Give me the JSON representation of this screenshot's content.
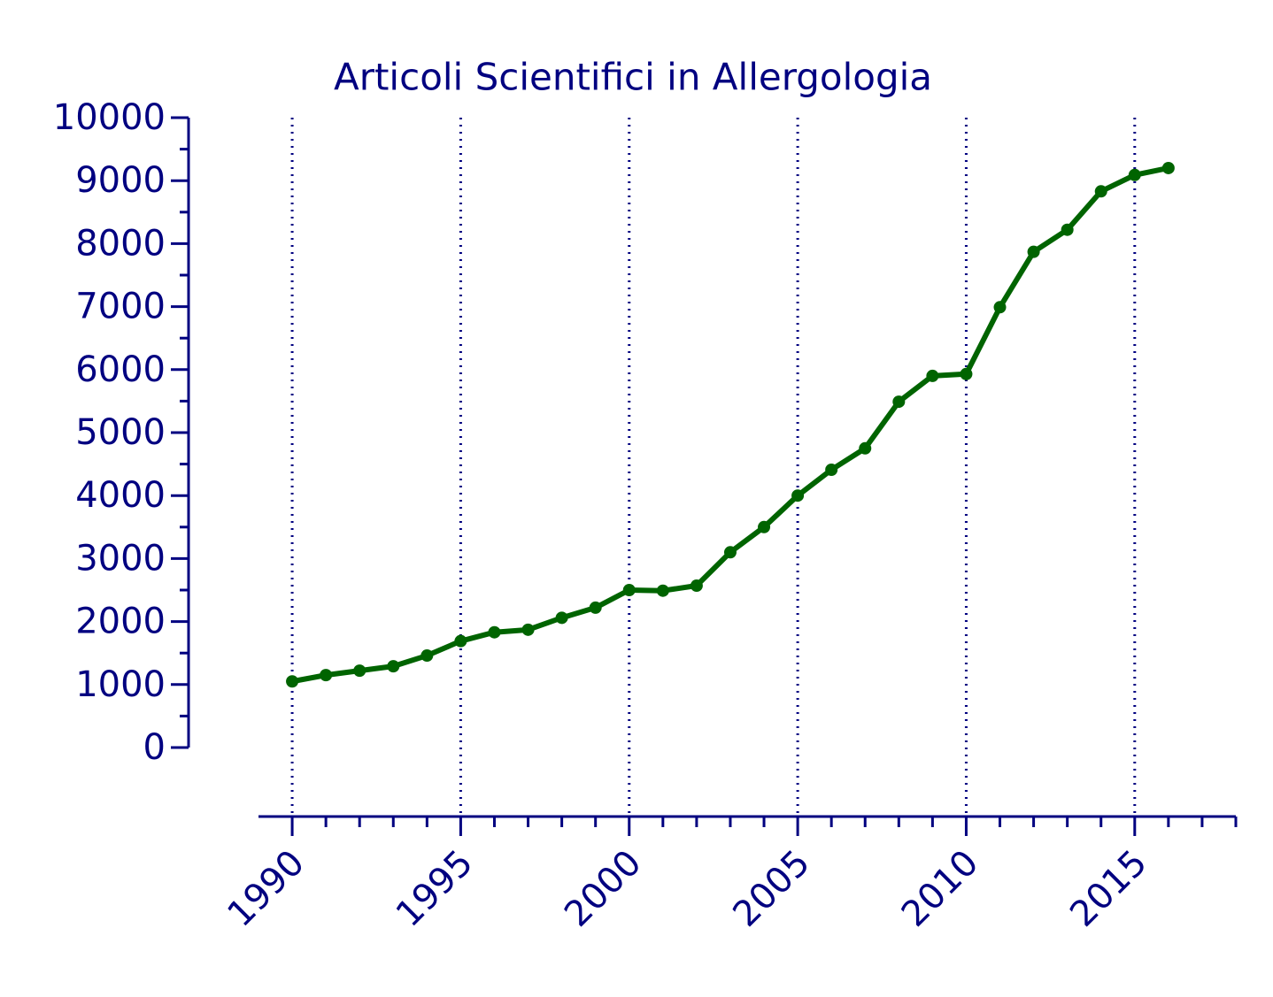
{
  "chart_data": {
    "type": "line",
    "title": "Articoli Scientifici in Allergologia",
    "x": [
      1990,
      1991,
      1992,
      1993,
      1994,
      1995,
      1996,
      1997,
      1998,
      1999,
      2000,
      2001,
      2002,
      2003,
      2004,
      2005,
      2006,
      2007,
      2008,
      2009,
      2010,
      2011,
      2012,
      2013,
      2014,
      2015,
      2016
    ],
    "series": [
      {
        "color": "#006400",
        "values": [
          1050,
          1150,
          1220,
          1290,
          1460,
          1690,
          1830,
          1870,
          2060,
          2220,
          2500,
          2490,
          2570,
          3100,
          3500,
          4000,
          4410,
          4750,
          5490,
          5900,
          5930,
          6990,
          7870,
          8220,
          8830,
          9090,
          9200
        ]
      }
    ],
    "xlim": [
      1989,
      2018
    ],
    "xticks": [
      1990,
      1995,
      2000,
      2005,
      2010,
      2015
    ],
    "xminorticks": [
      1991,
      1992,
      1993,
      1994,
      1996,
      1997,
      1998,
      1999,
      2001,
      2002,
      2003,
      2004,
      2006,
      2007,
      2008,
      2009,
      2011,
      2012,
      2013,
      2014,
      2016,
      2017,
      2018
    ],
    "ylim": [
      0,
      10000
    ],
    "yticks": [
      0,
      1000,
      2000,
      3000,
      4000,
      5000,
      6000,
      7000,
      8000,
      9000,
      10000
    ],
    "yminorticks": [
      500,
      1500,
      2500,
      3500,
      4500,
      5500,
      6500,
      7500,
      8500,
      9500
    ],
    "grid": "x",
    "axis_color": "#000080"
  }
}
